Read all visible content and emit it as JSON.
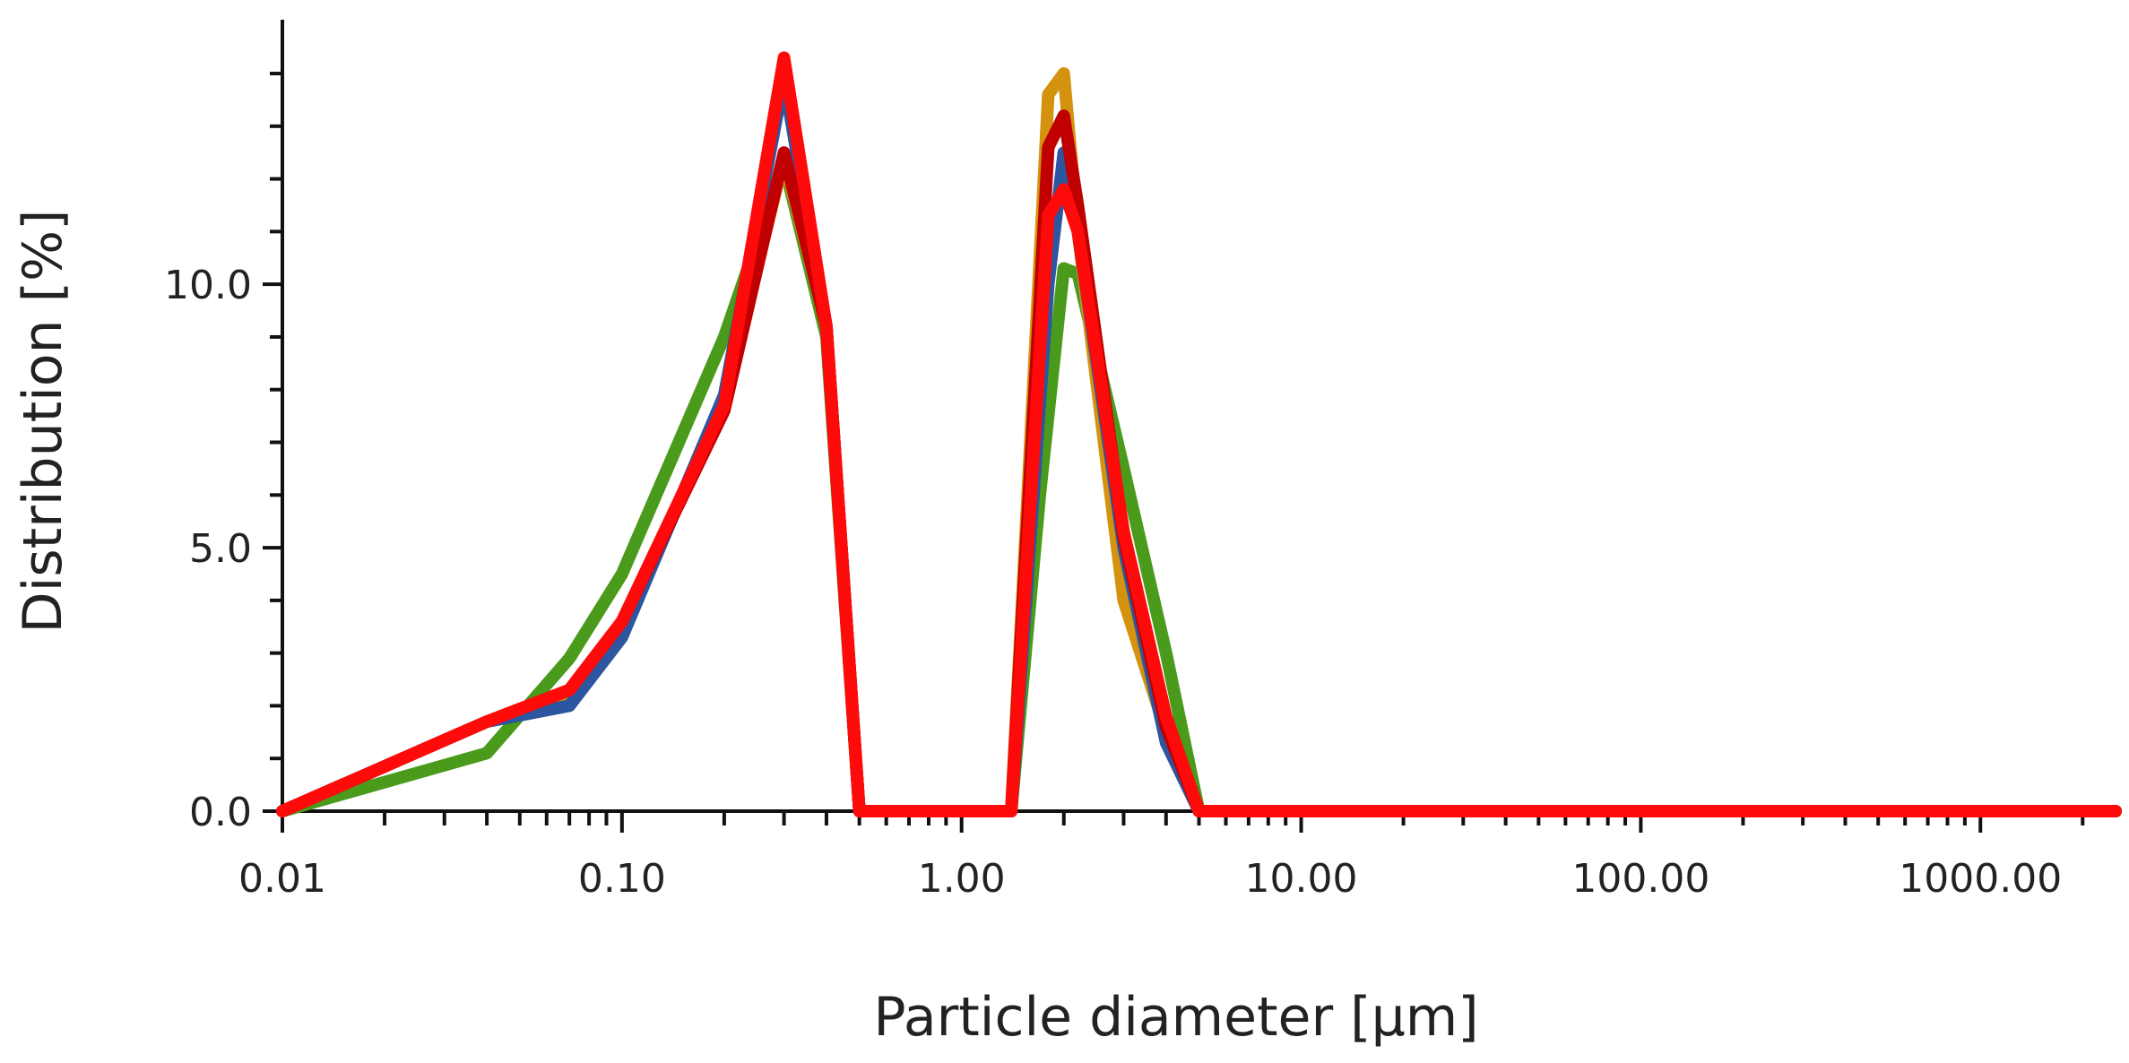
{
  "chart_data": {
    "type": "line",
    "title": "",
    "xlabel": "Particle diameter [µm]",
    "ylabel": "Distribution [%]",
    "x_scale": "log",
    "xlim": [
      0.01,
      2500
    ],
    "ylim": [
      0,
      14.8
    ],
    "x_ticks": [
      {
        "value": 0.01,
        "label": "0.01"
      },
      {
        "value": 0.1,
        "label": "0.10"
      },
      {
        "value": 1,
        "label": "1.00"
      },
      {
        "value": 10,
        "label": "10.00"
      },
      {
        "value": 100,
        "label": "100.00"
      },
      {
        "value": 1000,
        "label": "1000.00"
      }
    ],
    "y_ticks": [
      {
        "value": 0,
        "label": "0.0"
      },
      {
        "value": 5,
        "label": "5.0"
      },
      {
        "value": 10,
        "label": "10.0"
      }
    ],
    "grid": false,
    "legend": "none",
    "series": [
      {
        "color": "#4a9a1c",
        "x": [
          0.01,
          0.04,
          0.07,
          0.1,
          0.2,
          0.3,
          0.4,
          0.5,
          1.4,
          1.7,
          2.0,
          2.2,
          3.0,
          4.0,
          5.0,
          2500
        ],
        "y": [
          0.0,
          1.1,
          2.9,
          4.5,
          9.0,
          12.3,
          9.0,
          0.0,
          0.0,
          6.0,
          10.3,
          10.2,
          6.5,
          3.0,
          0.0,
          0.0
        ]
      },
      {
        "color": "#d4930e",
        "x": [
          0.01,
          0.04,
          0.07,
          0.1,
          0.2,
          0.3,
          0.4,
          0.5,
          1.4,
          1.8,
          2.0,
          2.2,
          3.0,
          4.0,
          5.0,
          2500
        ],
        "y": [
          0.0,
          1.7,
          2.2,
          3.4,
          7.8,
          12.4,
          9.2,
          0.0,
          0.0,
          13.6,
          14.0,
          11.0,
          4.0,
          1.5,
          0.0,
          0.0
        ]
      },
      {
        "color": "#2c56a0",
        "x": [
          0.01,
          0.04,
          0.07,
          0.1,
          0.2,
          0.3,
          0.4,
          0.5,
          1.4,
          1.8,
          2.0,
          2.2,
          3.0,
          4.0,
          5.0,
          2500
        ],
        "y": [
          0.0,
          1.7,
          2.0,
          3.3,
          7.9,
          13.9,
          9.2,
          0.0,
          0.0,
          10.0,
          12.5,
          11.0,
          5.0,
          1.3,
          0.0,
          0.0
        ]
      },
      {
        "color": "#c00000",
        "x": [
          0.01,
          0.04,
          0.07,
          0.1,
          0.2,
          0.3,
          0.4,
          0.5,
          1.4,
          1.8,
          2.0,
          2.2,
          3.0,
          4.0,
          5.0,
          2500
        ],
        "y": [
          0.0,
          1.7,
          2.3,
          3.6,
          7.6,
          12.5,
          9.2,
          0.0,
          0.0,
          12.6,
          13.2,
          11.5,
          5.2,
          1.6,
          0.0,
          0.0
        ]
      },
      {
        "color": "#ff0a0a",
        "x": [
          0.01,
          0.04,
          0.07,
          0.1,
          0.2,
          0.3,
          0.4,
          0.5,
          1.4,
          1.8,
          2.0,
          2.2,
          3.0,
          4.0,
          5.0,
          2500
        ],
        "y": [
          0.0,
          1.7,
          2.3,
          3.6,
          7.7,
          14.3,
          9.2,
          0.0,
          0.0,
          11.3,
          11.8,
          11.0,
          5.3,
          1.8,
          0.0,
          0.0
        ]
      }
    ]
  }
}
